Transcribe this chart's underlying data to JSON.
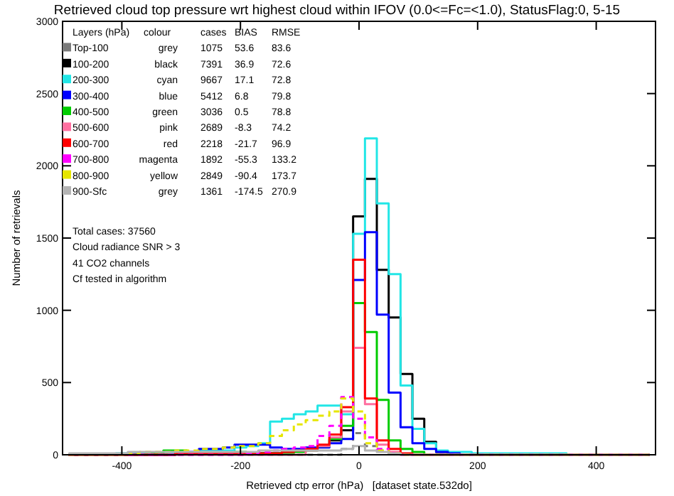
{
  "chart_data": {
    "type": "histogram",
    "title": "Retrieved cloud top pressure wrt highest cloud within IFOV (0.0<=Fc=<1.0), StatusFlag:0, 5-15",
    "xlabel": "Retrieved ctp error (hPa)   [dataset state.532do]",
    "ylabel": "Number of retrievals",
    "legend_title": "Layers (hPa)",
    "legend": "top left",
    "bins": [
      -490,
      -470,
      -450,
      -430,
      -410,
      -390,
      -370,
      -350,
      -330,
      -310,
      -290,
      -270,
      -250,
      -230,
      -210,
      -190,
      -170,
      -150,
      -130,
      -110,
      -90,
      -70,
      -50,
      -30,
      -10,
      10,
      30,
      50,
      70,
      90,
      110,
      130,
      150,
      170,
      190,
      210,
      230,
      250,
      270,
      290,
      310,
      330,
      350,
      370,
      390,
      410,
      430,
      450,
      470,
      490
    ],
    "xlim": [
      -500,
      500
    ],
    "xticks": [
      -400,
      -200,
      0,
      200,
      400
    ],
    "ylim": [
      0,
      3000
    ],
    "yticks": [
      0,
      500,
      1000,
      1500,
      2000,
      2500,
      3000
    ],
    "series": [
      {
        "name": "Top-100",
        "color": "#7a7a7a",
        "line_style": "dashed",
        "values": [
          0,
          0,
          0,
          0,
          0,
          0,
          0,
          0,
          0,
          0,
          0,
          0,
          0,
          0,
          0,
          0,
          0,
          0,
          0,
          0,
          0,
          0,
          0,
          40,
          150,
          60,
          30,
          10,
          0,
          0,
          0,
          0,
          0,
          0,
          0,
          0,
          0,
          0,
          0,
          0,
          0,
          0,
          0,
          0,
          0,
          0,
          0,
          0,
          0
        ]
      },
      {
        "name": "100-200",
        "color": "#000000",
        "values": [
          0,
          0,
          0,
          0,
          0,
          0,
          0,
          0,
          0,
          10,
          10,
          10,
          10,
          10,
          10,
          10,
          10,
          10,
          20,
          30,
          40,
          60,
          100,
          170,
          1650,
          1910,
          1280,
          950,
          560,
          250,
          90,
          20,
          10,
          0,
          0,
          0,
          0,
          0,
          0,
          0,
          0,
          0,
          0,
          0,
          0,
          0,
          0,
          0,
          0
        ]
      },
      {
        "name": "200-300",
        "color": "#22e6e6",
        "values": [
          0,
          0,
          0,
          0,
          10,
          10,
          10,
          10,
          10,
          10,
          10,
          30,
          30,
          30,
          50,
          60,
          80,
          230,
          250,
          280,
          300,
          340,
          340,
          280,
          1530,
          2190,
          1740,
          1250,
          480,
          180,
          80,
          30,
          20,
          20,
          10,
          10,
          10,
          10,
          10,
          10,
          10,
          10,
          0,
          0,
          0,
          0,
          0,
          0,
          0
        ]
      },
      {
        "name": "300-400",
        "color": "#0000ff",
        "values": [
          0,
          0,
          0,
          0,
          0,
          0,
          0,
          0,
          0,
          10,
          20,
          40,
          40,
          50,
          70,
          70,
          70,
          50,
          40,
          40,
          50,
          50,
          80,
          110,
          1210,
          1540,
          970,
          430,
          190,
          80,
          40,
          20,
          10,
          0,
          0,
          0,
          0,
          0,
          0,
          0,
          0,
          0,
          0,
          0,
          0,
          0,
          0,
          0,
          0
        ]
      },
      {
        "name": "400-500",
        "color": "#00cc00",
        "values": [
          0,
          0,
          0,
          0,
          0,
          0,
          0,
          10,
          30,
          30,
          10,
          10,
          10,
          10,
          20,
          10,
          10,
          10,
          10,
          20,
          30,
          60,
          110,
          200,
          1050,
          850,
          380,
          100,
          40,
          20,
          0,
          0,
          0,
          0,
          0,
          0,
          0,
          0,
          0,
          0,
          0,
          0,
          0,
          0,
          0,
          0,
          0,
          0,
          0
        ]
      },
      {
        "name": "500-600",
        "color": "#ff6fa0",
        "values": [
          0,
          0,
          0,
          0,
          0,
          0,
          0,
          0,
          0,
          0,
          0,
          0,
          0,
          0,
          0,
          0,
          0,
          0,
          0,
          0,
          30,
          60,
          120,
          300,
          740,
          350,
          70,
          20,
          0,
          0,
          0,
          0,
          0,
          0,
          0,
          0,
          0,
          0,
          0,
          0,
          0,
          0,
          0,
          0,
          0,
          0,
          0,
          0,
          0
        ]
      },
      {
        "name": "600-700",
        "color": "#ff0000",
        "values": [
          0,
          0,
          0,
          0,
          0,
          0,
          0,
          0,
          0,
          10,
          10,
          10,
          10,
          10,
          10,
          10,
          10,
          10,
          20,
          30,
          40,
          70,
          140,
          330,
          1350,
          390,
          100,
          40,
          10,
          0,
          0,
          0,
          0,
          0,
          0,
          0,
          0,
          0,
          0,
          0,
          0,
          0,
          0,
          0,
          0,
          0,
          0,
          0,
          0
        ]
      },
      {
        "name": "700-800",
        "color": "#ff00ff",
        "line_style": "dashed",
        "values": [
          0,
          0,
          0,
          0,
          0,
          0,
          0,
          0,
          0,
          0,
          0,
          0,
          0,
          0,
          0,
          10,
          20,
          30,
          40,
          50,
          60,
          130,
          200,
          400,
          250,
          120,
          40,
          10,
          0,
          0,
          0,
          0,
          0,
          0,
          0,
          0,
          0,
          0,
          0,
          0,
          0,
          0,
          0,
          0,
          0,
          0,
          0,
          0,
          0
        ]
      },
      {
        "name": "800-900",
        "color": "#e6e600",
        "line_style": "dashed",
        "values": [
          0,
          0,
          0,
          0,
          0,
          10,
          20,
          20,
          20,
          30,
          30,
          40,
          40,
          50,
          60,
          60,
          80,
          130,
          170,
          210,
          240,
          270,
          300,
          390,
          300,
          80,
          30,
          10,
          0,
          0,
          0,
          0,
          0,
          0,
          0,
          0,
          0,
          0,
          0,
          0,
          0,
          0,
          0,
          0,
          0,
          0,
          0,
          0,
          0
        ]
      },
      {
        "name": "900-Sfc",
        "color": "#b4b4b4",
        "values": [
          10,
          10,
          10,
          10,
          10,
          20,
          20,
          20,
          20,
          20,
          20,
          20,
          20,
          20,
          20,
          20,
          30,
          30,
          30,
          30,
          30,
          30,
          30,
          40,
          60,
          30,
          20,
          10,
          0,
          0,
          0,
          0,
          0,
          0,
          0,
          0,
          0,
          0,
          0,
          0,
          0,
          0,
          0,
          0,
          0,
          0,
          0,
          0,
          0
        ]
      }
    ],
    "annotations": [
      "colour cases BIAS RMSE",
      "grey 1075 53.6 83.6",
      "black 7391 36.9 72.6",
      "cyan 9667 17.1 72.8",
      "blue 5412 6.8 79.8",
      "green 3036 0.5 78.8",
      "pink 2689 -8.3 74.2",
      "red 2218 -21.7 96.9",
      "magenta 1892 -55.3 133.2",
      "yellow 2849 -90.4 173.7",
      "grey 1361 -174.5 270.9",
      "Total cases: 37560",
      "Cloud radiance SNR > 3",
      "41 CO2 channels",
      "Cf tested in algorithm"
    ]
  }
}
